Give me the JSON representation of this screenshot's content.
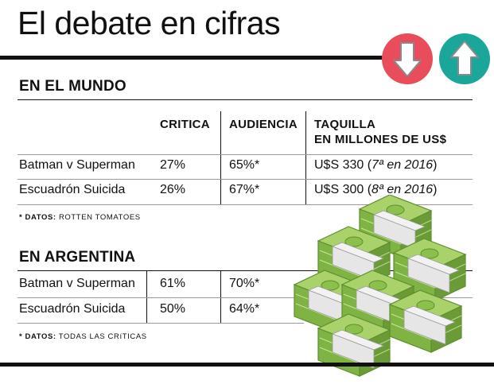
{
  "title": "El debate en cifras",
  "icons": {
    "down": {
      "name": "down-arrow-icon",
      "color": "#e94c5b"
    },
    "up": {
      "name": "up-arrow-icon",
      "color": "#1aa79a"
    }
  },
  "mundo": {
    "heading": "EN EL MUNDO",
    "columns": [
      "CRITICA",
      "AUDIENCIA",
      "TAQUILLA",
      "EN MILLONES DE US$"
    ],
    "rows": [
      {
        "film": "Batman v Superman",
        "critica": "27%",
        "audiencia": "65%*",
        "taquilla_main": "U$S 330 (",
        "taquilla_italic": "7ª en 2016",
        "taquilla_end": ")"
      },
      {
        "film": "Escuadrón Suicida",
        "critica": "26%",
        "audiencia": "67%*",
        "taquilla_main": "U$S 300 (",
        "taquilla_italic": "8ª en 2016",
        "taquilla_end": ")"
      }
    ],
    "note_label": "* DATOS:",
    "note_text": "ROTTEN TOMATOES"
  },
  "argentina": {
    "heading": "EN ARGENTINA",
    "rows": [
      {
        "film": "Batman v Superman",
        "critica": "61%",
        "audiencia": "70%*"
      },
      {
        "film": "Escuadrón Suicida",
        "critica": "50%",
        "audiencia": "64%*"
      }
    ],
    "note_label": "* DATOS:",
    "note_text": "TODAS LAS CRíTICAS"
  },
  "colors": {
    "money_light": "#a9d36a",
    "money_mid": "#8cc04c",
    "money_dark": "#5e8f2c",
    "band": "#f2f2f2"
  }
}
